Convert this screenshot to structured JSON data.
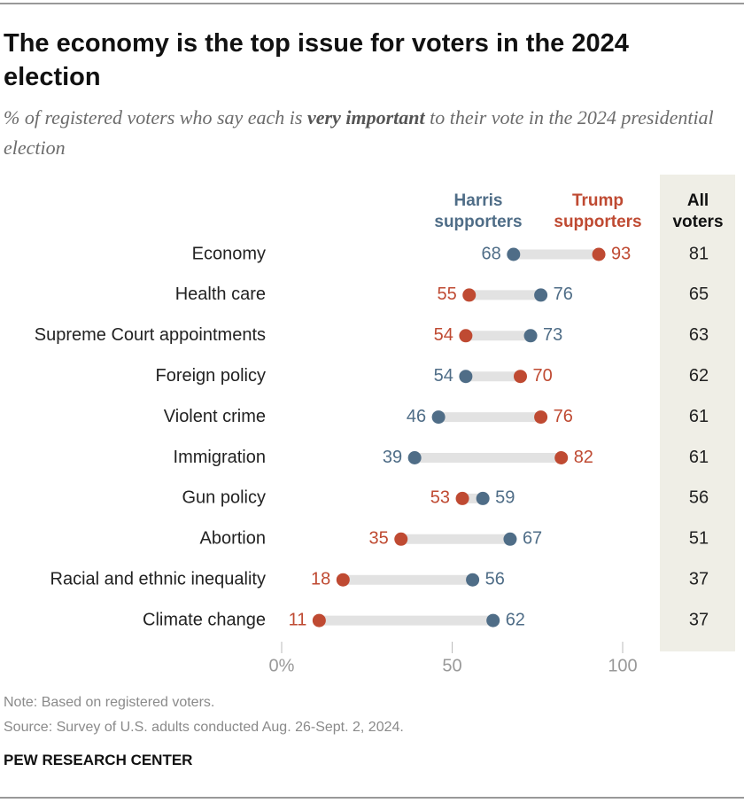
{
  "chart_data": {
    "type": "dumbbell",
    "title": "The economy is the top issue for voters in the 2024 election",
    "subtitle": [
      "% of registered voters who say each is ",
      "very important",
      " to their vote in the 2024 presidential election"
    ],
    "categories": [
      "Economy",
      "Health care",
      "Supreme Court appointments",
      "Foreign policy",
      "Violent crime",
      "Immigration",
      "Gun policy",
      "Abortion",
      "Racial and ethnic inequality",
      "Climate change"
    ],
    "series": [
      {
        "name": "Harris supporters",
        "color": "#4f6d87",
        "values": [
          68,
          76,
          73,
          54,
          46,
          39,
          59,
          67,
          56,
          62
        ]
      },
      {
        "name": "Trump supporters",
        "color": "#bf4a32",
        "values": [
          93,
          55,
          54,
          70,
          76,
          82,
          53,
          35,
          18,
          11
        ]
      }
    ],
    "all_voters": {
      "name": "All voters",
      "values": [
        81,
        65,
        63,
        62,
        61,
        61,
        56,
        51,
        37,
        37
      ]
    },
    "xlim": [
      0,
      100
    ],
    "xticks": [
      {
        "value": 0,
        "label": "0%"
      },
      50,
      100
    ],
    "note": "Note: Based on registered voters.",
    "source": "Source: Survey of U.S. adults conducted Aug. 26-Sept. 2, 2024.",
    "footer": "PEW RESEARCH CENTER"
  }
}
